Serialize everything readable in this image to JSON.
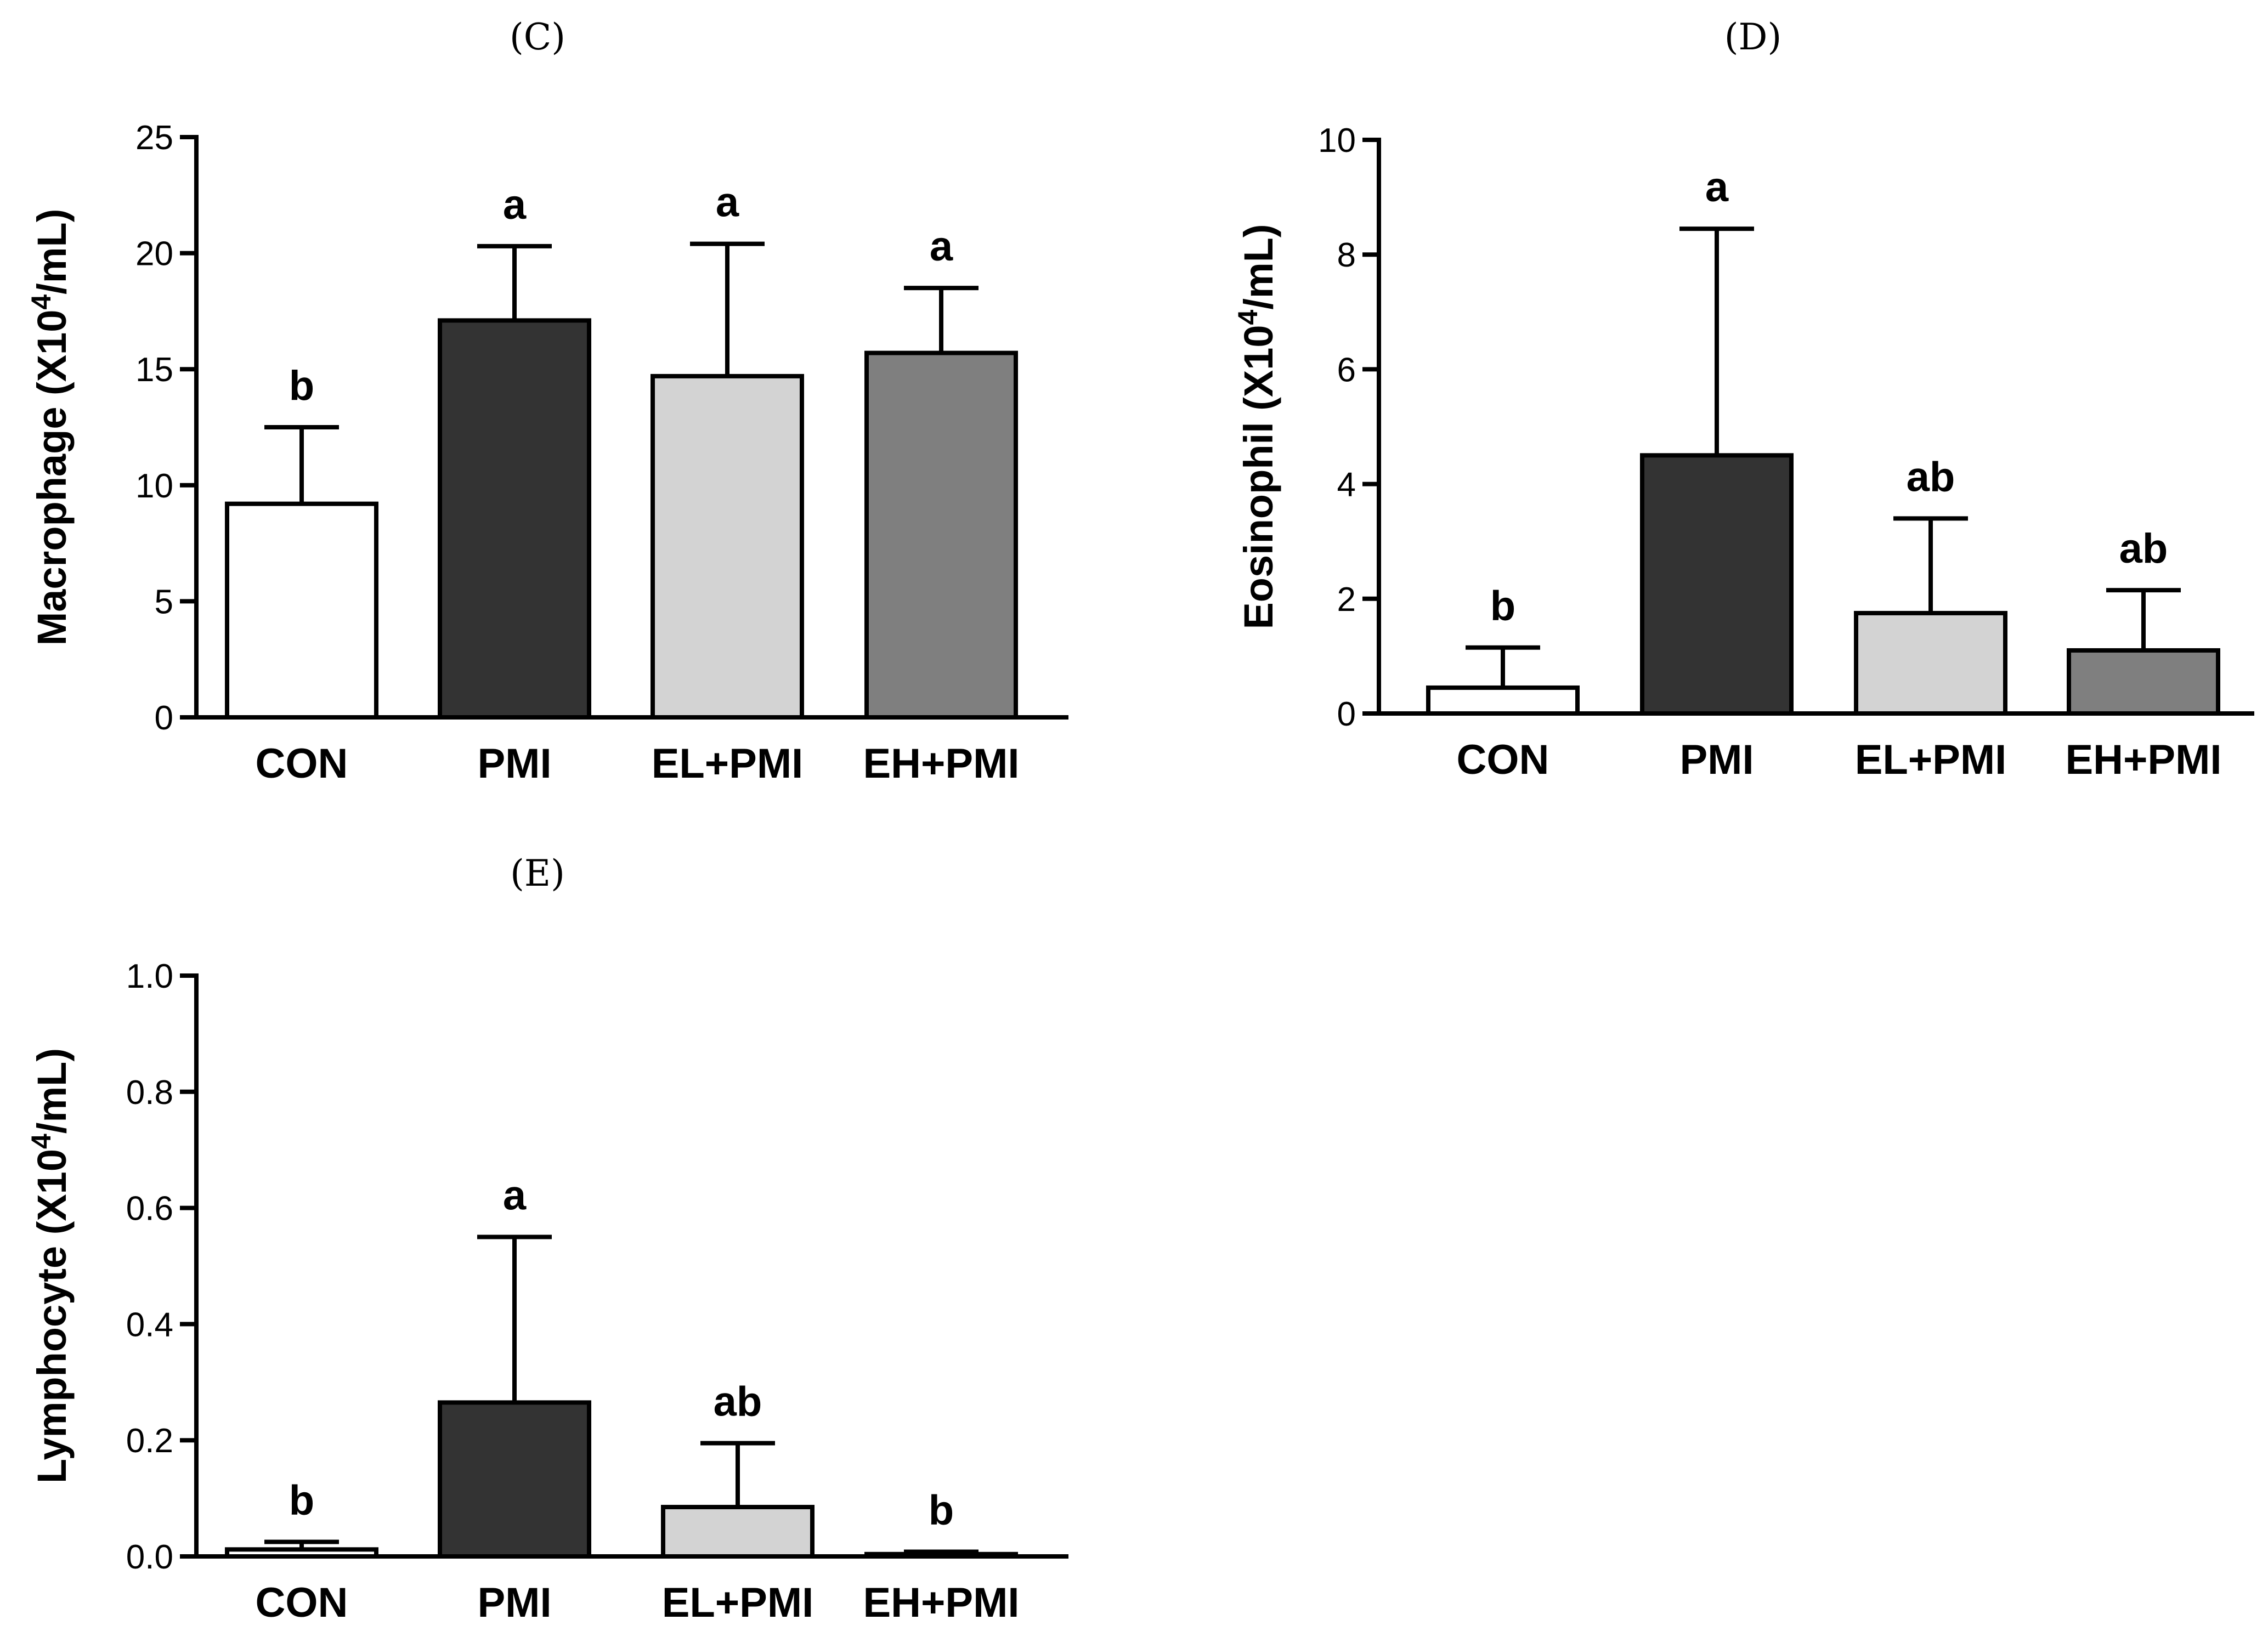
{
  "chart_data": [
    {
      "type": "bar",
      "panel": "(C)",
      "ylabel": "Macrophage (X10",
      "ylabel_exp": "4",
      "ylabel_unit": "/mL)",
      "categories": [
        "CON",
        "PMI",
        "EL+PMI",
        "EH+PMI"
      ],
      "values": [
        9.2,
        17.1,
        14.7,
        15.7
      ],
      "errors": [
        3.3,
        3.2,
        5.7,
        2.8
      ],
      "significance": [
        "b",
        "a",
        "a",
        "a"
      ],
      "colors": [
        "#ffffff",
        "#333333",
        "#d3d3d3",
        "#7f7f7f"
      ],
      "ylim": [
        0,
        25
      ],
      "yticks": [
        0,
        5,
        10,
        15,
        20,
        25
      ],
      "tick_labels": [
        "0",
        "5",
        "10",
        "15",
        "20",
        "25"
      ]
    },
    {
      "type": "bar",
      "panel": "(D)",
      "ylabel": "Eosinophil (X10",
      "ylabel_exp": "4",
      "ylabel_unit": "/mL)",
      "categories": [
        "CON",
        "PMI",
        "EL+PMI",
        "EH+PMI"
      ],
      "values": [
        0.45,
        4.5,
        1.75,
        1.1
      ],
      "errors": [
        0.7,
        3.95,
        1.65,
        1.05
      ],
      "significance": [
        "b",
        "a",
        "ab",
        "ab"
      ],
      "colors": [
        "#ffffff",
        "#333333",
        "#d3d3d3",
        "#7f7f7f"
      ],
      "ylim": [
        0,
        10
      ],
      "yticks": [
        0,
        2,
        4,
        6,
        8,
        10
      ],
      "tick_labels": [
        "0",
        "2",
        "4",
        "6",
        "8",
        "10"
      ]
    },
    {
      "type": "bar",
      "panel": "(E)",
      "ylabel": "Lymphocyte (X10",
      "ylabel_exp": "4",
      "ylabel_unit": "/mL)",
      "categories": [
        "CON",
        "PMI",
        "EL+PMI",
        "EH+PMI"
      ],
      "values": [
        0.012,
        0.265,
        0.085,
        0.004
      ],
      "errors": [
        0.013,
        0.285,
        0.11,
        0.004
      ],
      "significance": [
        "b",
        "a",
        "ab",
        "b"
      ],
      "colors": [
        "#ffffff",
        "#333333",
        "#d3d3d3",
        "#7f7f7f"
      ],
      "ylim": [
        0,
        1.0
      ],
      "yticks": [
        0,
        0.2,
        0.4,
        0.6,
        0.8,
        1.0
      ],
      "tick_labels": [
        "0.0",
        "0.2",
        "0.4",
        "0.6",
        "0.8",
        "1.0"
      ]
    }
  ]
}
